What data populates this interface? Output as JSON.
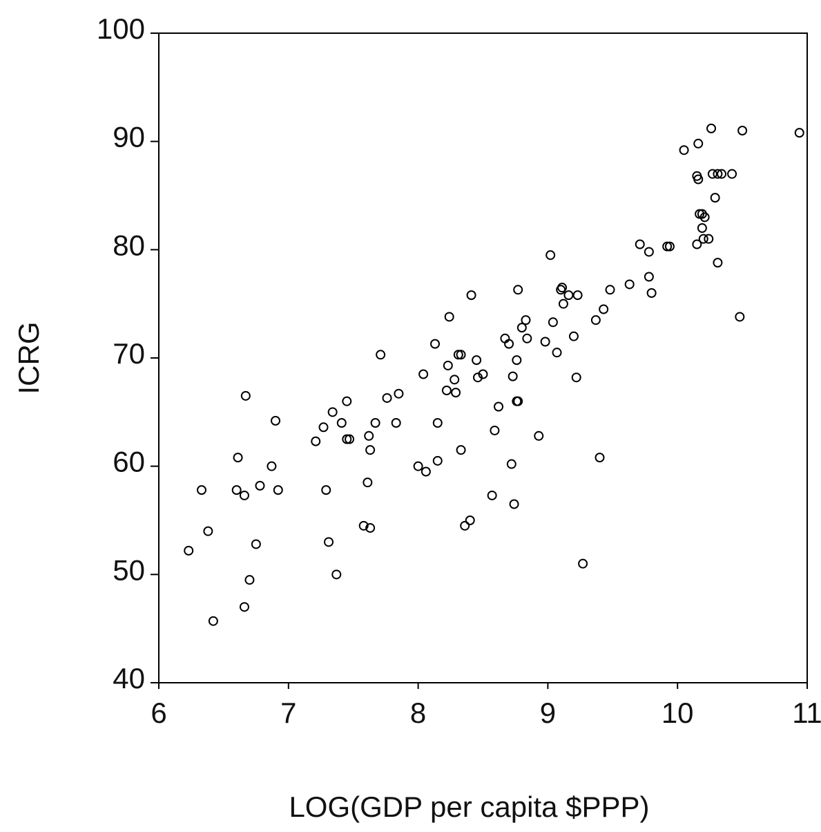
{
  "chart_data": {
    "type": "scatter",
    "title": "",
    "xlabel": "LOG(GDP per capita $PPP)",
    "ylabel": "ICRG",
    "xlim": [
      6,
      11
    ],
    "ylim": [
      40,
      100
    ],
    "x_ticks": [
      "6",
      "7",
      "8",
      "9",
      "10",
      "11"
    ],
    "y_ticks": [
      "40",
      "50",
      "60",
      "70",
      "80",
      "90",
      "100"
    ],
    "x_tick_values": [
      6,
      7,
      8,
      9,
      10,
      11
    ],
    "y_tick_values": [
      40,
      50,
      60,
      70,
      80,
      90,
      100
    ],
    "grid": false,
    "legend": "none",
    "marker": "hollow-circle",
    "marker_color": "#000000",
    "points": [
      {
        "x": 6.23,
        "y": 52.2
      },
      {
        "x": 6.33,
        "y": 57.8
      },
      {
        "x": 6.38,
        "y": 54.0
      },
      {
        "x": 6.42,
        "y": 45.7
      },
      {
        "x": 6.6,
        "y": 57.8
      },
      {
        "x": 6.61,
        "y": 60.8
      },
      {
        "x": 6.66,
        "y": 57.3
      },
      {
        "x": 6.66,
        "y": 47.0
      },
      {
        "x": 6.67,
        "y": 66.5
      },
      {
        "x": 6.7,
        "y": 49.5
      },
      {
        "x": 6.75,
        "y": 52.8
      },
      {
        "x": 6.78,
        "y": 58.2
      },
      {
        "x": 6.87,
        "y": 60.0
      },
      {
        "x": 6.9,
        "y": 64.2
      },
      {
        "x": 6.92,
        "y": 57.8
      },
      {
        "x": 7.21,
        "y": 62.3
      },
      {
        "x": 7.27,
        "y": 63.6
      },
      {
        "x": 7.29,
        "y": 57.8
      },
      {
        "x": 7.31,
        "y": 53.0
      },
      {
        "x": 7.34,
        "y": 65.0
      },
      {
        "x": 7.37,
        "y": 50.0
      },
      {
        "x": 7.41,
        "y": 64.0
      },
      {
        "x": 7.45,
        "y": 62.5
      },
      {
        "x": 7.47,
        "y": 62.5
      },
      {
        "x": 7.45,
        "y": 66.0
      },
      {
        "x": 7.58,
        "y": 54.5
      },
      {
        "x": 7.61,
        "y": 58.5
      },
      {
        "x": 7.62,
        "y": 62.8
      },
      {
        "x": 7.63,
        "y": 61.5
      },
      {
        "x": 7.63,
        "y": 54.3
      },
      {
        "x": 7.67,
        "y": 64.0
      },
      {
        "x": 7.71,
        "y": 70.3
      },
      {
        "x": 7.76,
        "y": 66.3
      },
      {
        "x": 7.83,
        "y": 64.0
      },
      {
        "x": 7.85,
        "y": 66.7
      },
      {
        "x": 8.0,
        "y": 60.0
      },
      {
        "x": 8.04,
        "y": 68.5
      },
      {
        "x": 8.06,
        "y": 59.5
      },
      {
        "x": 8.13,
        "y": 71.3
      },
      {
        "x": 8.15,
        "y": 64.0
      },
      {
        "x": 8.15,
        "y": 60.5
      },
      {
        "x": 8.22,
        "y": 67.0
      },
      {
        "x": 8.23,
        "y": 69.3
      },
      {
        "x": 8.24,
        "y": 73.8
      },
      {
        "x": 8.28,
        "y": 68.0
      },
      {
        "x": 8.29,
        "y": 66.8
      },
      {
        "x": 8.31,
        "y": 70.3
      },
      {
        "x": 8.33,
        "y": 70.3
      },
      {
        "x": 8.33,
        "y": 61.5
      },
      {
        "x": 8.36,
        "y": 54.5
      },
      {
        "x": 8.4,
        "y": 55.0
      },
      {
        "x": 8.41,
        "y": 75.8
      },
      {
        "x": 8.45,
        "y": 69.8
      },
      {
        "x": 8.46,
        "y": 68.2
      },
      {
        "x": 8.5,
        "y": 68.5
      },
      {
        "x": 8.57,
        "y": 57.3
      },
      {
        "x": 8.59,
        "y": 63.3
      },
      {
        "x": 8.62,
        "y": 65.5
      },
      {
        "x": 8.67,
        "y": 71.8
      },
      {
        "x": 8.7,
        "y": 71.3
      },
      {
        "x": 8.72,
        "y": 60.2
      },
      {
        "x": 8.73,
        "y": 68.3
      },
      {
        "x": 8.74,
        "y": 56.5
      },
      {
        "x": 8.76,
        "y": 69.8
      },
      {
        "x": 8.76,
        "y": 66.0
      },
      {
        "x": 8.77,
        "y": 66.0
      },
      {
        "x": 8.77,
        "y": 76.3
      },
      {
        "x": 8.8,
        "y": 72.8
      },
      {
        "x": 8.83,
        "y": 73.5
      },
      {
        "x": 8.84,
        "y": 71.8
      },
      {
        "x": 8.93,
        "y": 62.8
      },
      {
        "x": 8.98,
        "y": 71.5
      },
      {
        "x": 9.02,
        "y": 79.5
      },
      {
        "x": 9.04,
        "y": 73.3
      },
      {
        "x": 9.07,
        "y": 70.5
      },
      {
        "x": 9.1,
        "y": 76.3
      },
      {
        "x": 9.11,
        "y": 76.5
      },
      {
        "x": 9.12,
        "y": 75.0
      },
      {
        "x": 9.16,
        "y": 75.8
      },
      {
        "x": 9.2,
        "y": 72.0
      },
      {
        "x": 9.22,
        "y": 68.2
      },
      {
        "x": 9.23,
        "y": 75.8
      },
      {
        "x": 9.27,
        "y": 51.0
      },
      {
        "x": 9.37,
        "y": 73.5
      },
      {
        "x": 9.4,
        "y": 60.8
      },
      {
        "x": 9.43,
        "y": 74.5
      },
      {
        "x": 9.48,
        "y": 76.3
      },
      {
        "x": 9.63,
        "y": 76.8
      },
      {
        "x": 9.71,
        "y": 80.5
      },
      {
        "x": 9.78,
        "y": 79.8
      },
      {
        "x": 9.78,
        "y": 77.5
      },
      {
        "x": 9.8,
        "y": 76.0
      },
      {
        "x": 9.92,
        "y": 80.3
      },
      {
        "x": 9.94,
        "y": 80.3
      },
      {
        "x": 10.05,
        "y": 89.2
      },
      {
        "x": 10.15,
        "y": 86.8
      },
      {
        "x": 10.16,
        "y": 86.5
      },
      {
        "x": 10.15,
        "y": 80.5
      },
      {
        "x": 10.16,
        "y": 89.8
      },
      {
        "x": 10.17,
        "y": 83.3
      },
      {
        "x": 10.19,
        "y": 83.3
      },
      {
        "x": 10.21,
        "y": 83.0
      },
      {
        "x": 10.19,
        "y": 82.0
      },
      {
        "x": 10.2,
        "y": 81.0
      },
      {
        "x": 10.24,
        "y": 81.0
      },
      {
        "x": 10.26,
        "y": 91.2
      },
      {
        "x": 10.27,
        "y": 87.0
      },
      {
        "x": 10.29,
        "y": 84.8
      },
      {
        "x": 10.31,
        "y": 78.8
      },
      {
        "x": 10.31,
        "y": 87.0
      },
      {
        "x": 10.34,
        "y": 87.0
      },
      {
        "x": 10.42,
        "y": 87.0
      },
      {
        "x": 10.48,
        "y": 73.8
      },
      {
        "x": 10.5,
        "y": 91.0
      },
      {
        "x": 10.94,
        "y": 90.8
      }
    ]
  }
}
